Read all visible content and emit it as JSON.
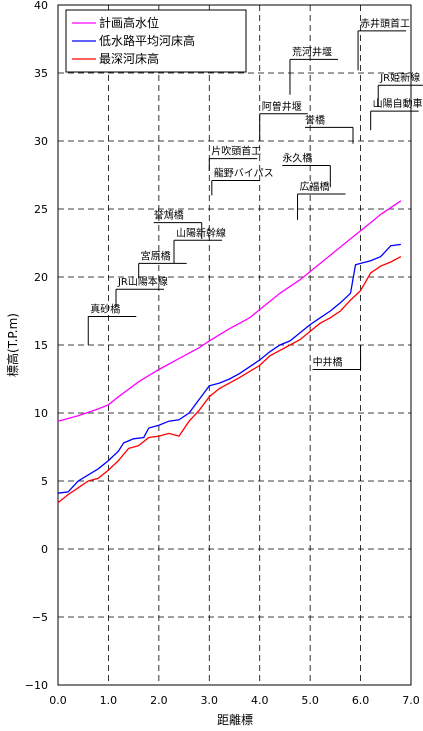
{
  "chart_data": {
    "type": "line",
    "xlabel": "距離標",
    "ylabel": "標高(T.P.m)",
    "xlim": [
      0,
      7
    ],
    "ylim": [
      -10,
      40
    ],
    "x_ticks": [
      "0.0",
      "1.0",
      "2.0",
      "3.0",
      "4.0",
      "5.0",
      "6.0",
      "7.0"
    ],
    "y_ticks": [
      "−10",
      "−5",
      "0",
      "5",
      "10",
      "15",
      "20",
      "25",
      "30",
      "35",
      "40"
    ],
    "grid": true,
    "legend_position": "top-left",
    "series": [
      {
        "name": "計画高水位",
        "color": "#ff00ff",
        "points": [
          [
            0.0,
            9.4
          ],
          [
            0.4,
            9.8
          ],
          [
            0.8,
            10.3
          ],
          [
            1.0,
            10.6
          ],
          [
            1.2,
            11.2
          ],
          [
            1.6,
            12.3
          ],
          [
            2.0,
            13.2
          ],
          [
            2.4,
            14.0
          ],
          [
            2.8,
            14.8
          ],
          [
            3.0,
            15.3
          ],
          [
            3.4,
            16.2
          ],
          [
            3.8,
            17.0
          ],
          [
            4.0,
            17.6
          ],
          [
            4.4,
            18.8
          ],
          [
            4.8,
            19.8
          ],
          [
            5.0,
            20.4
          ],
          [
            5.4,
            21.6
          ],
          [
            5.8,
            22.8
          ],
          [
            6.0,
            23.4
          ],
          [
            6.2,
            24.0
          ],
          [
            6.4,
            24.6
          ],
          [
            6.8,
            25.6
          ]
        ]
      },
      {
        "name": "低水路平均河床高",
        "color": "#0000ff",
        "points": [
          [
            0.0,
            4.1
          ],
          [
            0.2,
            4.2
          ],
          [
            0.4,
            5.0
          ],
          [
            0.8,
            5.9
          ],
          [
            1.0,
            6.5
          ],
          [
            1.2,
            7.2
          ],
          [
            1.3,
            7.8
          ],
          [
            1.5,
            8.1
          ],
          [
            1.7,
            8.2
          ],
          [
            1.8,
            8.9
          ],
          [
            2.0,
            9.1
          ],
          [
            2.2,
            9.4
          ],
          [
            2.4,
            9.5
          ],
          [
            2.6,
            10.0
          ],
          [
            2.8,
            11.0
          ],
          [
            3.0,
            12.0
          ],
          [
            3.2,
            12.2
          ],
          [
            3.4,
            12.5
          ],
          [
            3.6,
            12.9
          ],
          [
            4.0,
            13.9
          ],
          [
            4.2,
            14.5
          ],
          [
            4.4,
            15.0
          ],
          [
            4.6,
            15.3
          ],
          [
            4.8,
            15.9
          ],
          [
            5.0,
            16.5
          ],
          [
            5.2,
            17.0
          ],
          [
            5.4,
            17.5
          ],
          [
            5.6,
            18.1
          ],
          [
            5.8,
            18.8
          ],
          [
            5.9,
            20.9
          ],
          [
            6.0,
            21.0
          ],
          [
            6.2,
            21.2
          ],
          [
            6.4,
            21.5
          ],
          [
            6.6,
            22.3
          ],
          [
            6.8,
            22.4
          ]
        ]
      },
      {
        "name": "最深河床高",
        "color": "#ff0000",
        "points": [
          [
            0.0,
            3.4
          ],
          [
            0.2,
            4.0
          ],
          [
            0.4,
            4.5
          ],
          [
            0.6,
            5.0
          ],
          [
            0.8,
            5.2
          ],
          [
            1.0,
            5.8
          ],
          [
            1.2,
            6.5
          ],
          [
            1.4,
            7.4
          ],
          [
            1.6,
            7.6
          ],
          [
            1.8,
            8.2
          ],
          [
            2.0,
            8.3
          ],
          [
            2.2,
            8.5
          ],
          [
            2.4,
            8.3
          ],
          [
            2.6,
            9.4
          ],
          [
            2.8,
            10.2
          ],
          [
            3.0,
            11.2
          ],
          [
            3.2,
            11.8
          ],
          [
            3.4,
            12.2
          ],
          [
            3.6,
            12.6
          ],
          [
            4.0,
            13.5
          ],
          [
            4.2,
            14.2
          ],
          [
            4.4,
            14.6
          ],
          [
            4.6,
            15.0
          ],
          [
            4.8,
            15.4
          ],
          [
            5.0,
            16.0
          ],
          [
            5.2,
            16.6
          ],
          [
            5.4,
            17.0
          ],
          [
            5.6,
            17.5
          ],
          [
            5.8,
            18.3
          ],
          [
            6.0,
            19.0
          ],
          [
            6.2,
            20.3
          ],
          [
            6.4,
            20.8
          ],
          [
            6.6,
            21.1
          ],
          [
            6.8,
            21.5
          ]
        ]
      }
    ],
    "annotations": [
      {
        "text": "赤井頭首工",
        "x": 5.95,
        "y": 38.1,
        "side": "right",
        "stem_to": 35.2
      },
      {
        "text": "荒河井堰",
        "x": 4.6,
        "y": 36.0,
        "side": "right",
        "stem_to": 33.4
      },
      {
        "text": "JR姫新線",
        "x": 6.35,
        "y": 34.1,
        "side": "right",
        "stem_to": 32.5
      },
      {
        "text": "山陽自動車道",
        "x": 6.2,
        "y": 32.2,
        "side": "right",
        "stem_to": 30.8
      },
      {
        "text": "阿曽井堰",
        "x": 4.0,
        "y": 32.0,
        "side": "right",
        "stem_to": 30.0
      },
      {
        "text": "誉橋",
        "x": 5.85,
        "y": 31.0,
        "side": "left",
        "stem_to": 29.8
      },
      {
        "text": "片吹頭首工",
        "x": 3.0,
        "y": 28.7,
        "side": "right",
        "stem_to": 27.8
      },
      {
        "text": "永久橋",
        "x": 5.4,
        "y": 28.2,
        "side": "left",
        "stem_to": 26.6
      },
      {
        "text": "龍野バイパス",
        "x": 3.05,
        "y": 27.1,
        "side": "right",
        "stem_to": 26.0
      },
      {
        "text": "広福橋",
        "x": 4.75,
        "y": 26.1,
        "side": "right",
        "stem_to": 24.2
      },
      {
        "text": "誉鴆橋",
        "x": 2.85,
        "y": 24.0,
        "side": "left",
        "stem_to": 22.8
      },
      {
        "text": "山陽新幹線",
        "x": 2.3,
        "y": 22.7,
        "side": "right",
        "stem_to": 21.0
      },
      {
        "text": "宮原橋",
        "x": 1.6,
        "y": 21.0,
        "side": "right",
        "stem_to": 19.9
      },
      {
        "text": "JR山陽本線",
        "x": 1.15,
        "y": 19.1,
        "side": "right",
        "stem_to": 17.8
      },
      {
        "text": "真砂橋",
        "x": 0.6,
        "y": 17.1,
        "side": "right",
        "stem_to": 15.0
      },
      {
        "text": "中井橋",
        "x": 6.0,
        "y": 13.2,
        "side": "left",
        "stem_to": 15.0
      }
    ]
  }
}
